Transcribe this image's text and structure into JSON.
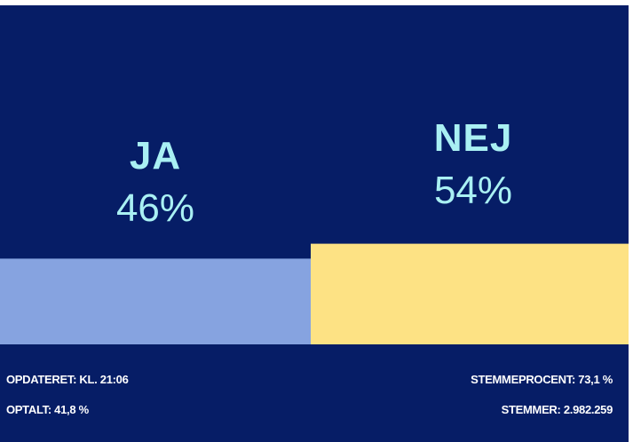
{
  "chart_data": {
    "type": "bar",
    "categories": [
      "JA",
      "NEJ"
    ],
    "values": [
      46,
      54
    ],
    "value_labels": [
      "46%",
      "54%"
    ],
    "unit": "%",
    "colors": [
      "#86a3e0",
      "#fde284"
    ],
    "ylim": [
      0,
      100
    ],
    "title": "",
    "xlabel": "",
    "ylabel": ""
  },
  "theme": {
    "background": "#061d66",
    "label_color": "#a9f0f3",
    "footer_color": "#ffffff"
  },
  "footer": {
    "updated": "OPDATERET: KL. 21:06",
    "counted": "OPTALT: 41,8 %",
    "turnout": "STEMMEPROCENT: 73,1 %",
    "votes": "STEMMER: 2.982.259"
  }
}
